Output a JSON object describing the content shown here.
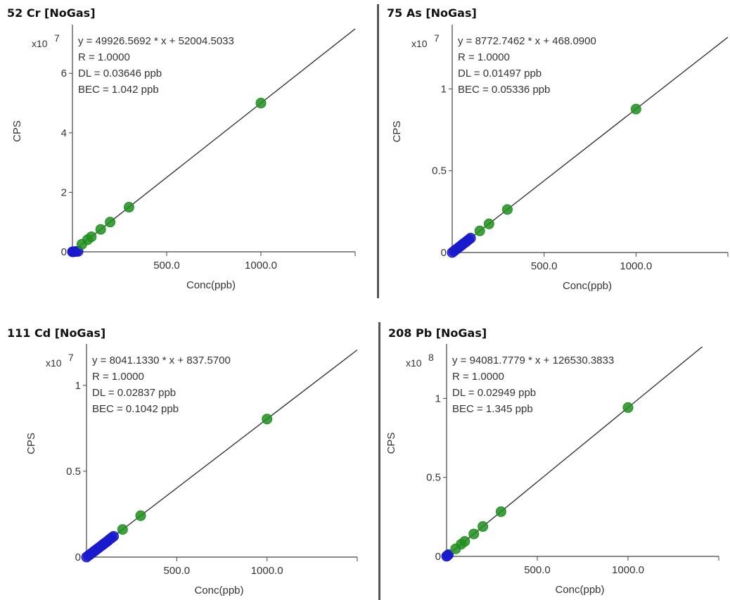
{
  "chart_data": [
    {
      "type": "scatter",
      "title": "52 Cr [NoGas]",
      "xlabel": "Conc(ppb)",
      "ylabel": "CPS",
      "y_multiplier": "x10",
      "y_exponent": "7",
      "xlim": [
        0,
        1500
      ],
      "ylim": [
        0,
        7.4
      ],
      "xticks": [
        {
          "value": 500,
          "label": "500.0"
        },
        {
          "value": 1000,
          "label": "1000.0"
        }
      ],
      "yticks": [
        {
          "value": 0,
          "label": "0"
        },
        {
          "value": 2,
          "label": "2"
        },
        {
          "value": 4,
          "label": "4"
        },
        {
          "value": 6,
          "label": "6"
        }
      ],
      "stats": [
        "y = 49926.5692 * x + 52004.5033",
        "R = 1.0000",
        "DL = 0.03646 ppb",
        "BEC = 1.042 ppb"
      ],
      "fit": {
        "slope": 49926.5692,
        "intercept": 52004.5033
      },
      "scale": 10000000,
      "series": [
        {
          "color": "#1a1acc",
          "x": [
            0,
            2,
            5,
            10,
            20,
            30
          ],
          "y": [
            0.0005,
            0.0015,
            0.003,
            0.0055,
            0.0105,
            0.0155
          ]
        },
        {
          "color": "#1f8f1f",
          "x": [
            50,
            80,
            100,
            150,
            200,
            300,
            1000
          ],
          "y": [
            0.255,
            0.405,
            0.505,
            0.755,
            1.0,
            1.5,
            5.0
          ]
        }
      ]
    },
    {
      "type": "scatter",
      "title": "75 As [NoGas]",
      "xlabel": "Conc(ppb)",
      "ylabel": "CPS",
      "y_multiplier": "x10",
      "y_exponent": "7",
      "xlim": [
        0,
        1500
      ],
      "ylim": [
        0,
        1.35
      ],
      "xticks": [
        {
          "value": 500,
          "label": "500.0"
        },
        {
          "value": 1000,
          "label": "1000.0"
        }
      ],
      "yticks": [
        {
          "value": 0,
          "label": "0"
        },
        {
          "value": 0.5,
          "label": "0.5"
        },
        {
          "value": 1,
          "label": "1"
        }
      ],
      "stats": [
        "y = 8772.7462 * x + 468.0900",
        "R = 1.0000",
        "DL = 0.01497 ppb",
        "BEC = 0.05336 ppb"
      ],
      "fit": {
        "slope": 8772.7462,
        "intercept": 468.09
      },
      "scale": 10000000,
      "series": [
        {
          "color": "#1a1acc",
          "x": [
            0,
            10,
            20,
            30,
            40,
            50,
            60,
            70,
            80,
            90,
            100
          ],
          "y": [
            0.0,
            0.009,
            0.018,
            0.026,
            0.035,
            0.044,
            0.053,
            0.061,
            0.07,
            0.079,
            0.088
          ]
        },
        {
          "color": "#1f8f1f",
          "x": [
            150,
            200,
            300,
            1000
          ],
          "y": [
            0.132,
            0.175,
            0.263,
            0.877
          ]
        }
      ]
    },
    {
      "type": "scatter",
      "title": "111 Cd [NoGas]",
      "xlabel": "Conc(ppb)",
      "ylabel": "CPS",
      "y_multiplier": "x10",
      "y_exponent": "7",
      "xlim": [
        0,
        1500
      ],
      "ylim": [
        0,
        1.2
      ],
      "xticks": [
        {
          "value": 500,
          "label": "500.0"
        },
        {
          "value": 1000,
          "label": "1000.0"
        }
      ],
      "yticks": [
        {
          "value": 0,
          "label": "0"
        },
        {
          "value": 0.5,
          "label": "0.5"
        },
        {
          "value": 1,
          "label": "1"
        }
      ],
      "stats": [
        "y = 8041.1330 * x + 837.5700",
        "R = 1.0000",
        "DL = 0.02837 ppb",
        "BEC = 0.1042 ppb"
      ],
      "fit": {
        "slope": 8041.133,
        "intercept": 837.57
      },
      "scale": 10000000,
      "series": [
        {
          "color": "#1a1acc",
          "x": [
            0,
            10,
            20,
            30,
            40,
            50,
            60,
            70,
            80,
            90,
            100,
            110,
            120,
            130,
            140,
            150
          ],
          "y": [
            0.0,
            0.008,
            0.016,
            0.024,
            0.032,
            0.04,
            0.048,
            0.056,
            0.064,
            0.072,
            0.08,
            0.088,
            0.096,
            0.105,
            0.113,
            0.121
          ]
        },
        {
          "color": "#1f8f1f",
          "x": [
            200,
            300,
            1000
          ],
          "y": [
            0.161,
            0.241,
            0.804
          ]
        }
      ]
    },
    {
      "type": "scatter",
      "title": "208 Pb [NoGas]",
      "xlabel": "Conc(ppb)",
      "ylabel": "CPS",
      "y_multiplier": "x10",
      "y_exponent": "8",
      "xlim": [
        0,
        1500
      ],
      "ylim": [
        0,
        1.3
      ],
      "xticks": [
        {
          "value": 500,
          "label": "500.0"
        },
        {
          "value": 1000,
          "label": "1000.0"
        }
      ],
      "yticks": [
        {
          "value": 0,
          "label": "0"
        },
        {
          "value": 0.5,
          "label": "0.5"
        },
        {
          "value": 1,
          "label": "1"
        }
      ],
      "stats": [
        "y = 94081.7779 * x + 126530.3833",
        "R = 1.0000",
        "DL = 0.02949 ppb",
        "BEC = 1.345 ppb"
      ],
      "fit": {
        "slope": 94081.7779,
        "intercept": 126530.3833
      },
      "scale": 100000000,
      "series": [
        {
          "color": "#1a1acc",
          "x": [
            0,
            5,
            10
          ],
          "y": [
            0.001,
            0.006,
            0.011
          ]
        },
        {
          "color": "#1f8f1f",
          "x": [
            50,
            80,
            100,
            150,
            200,
            300,
            1000
          ],
          "y": [
            0.048,
            0.077,
            0.095,
            0.142,
            0.189,
            0.283,
            0.942
          ]
        }
      ]
    }
  ]
}
